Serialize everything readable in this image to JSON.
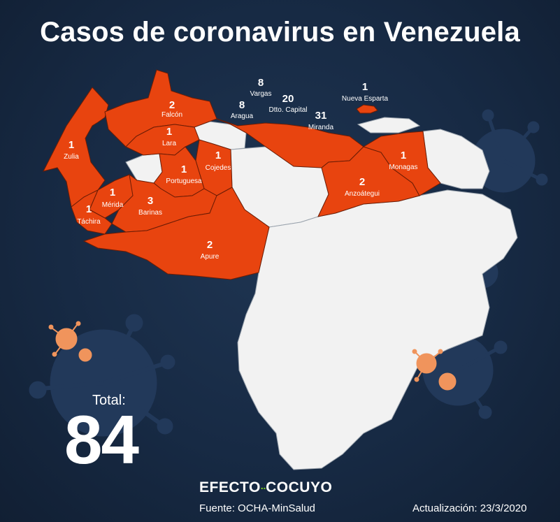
{
  "title": "Casos de coronavirus en Venezuela",
  "total": {
    "label": "Total:",
    "value": "84"
  },
  "brand": {
    "left": "EFECTO",
    "dots": "··",
    "right": "COCUYO"
  },
  "source": "Fuente: OCHA-MinSalud",
  "updated": "Actualización: 23/3/2020",
  "colors": {
    "background": "#172a44",
    "affected": "#e8440f",
    "unaffected": "#f2f2f2",
    "virus_decoration": "#f0945c"
  },
  "states": [
    {
      "name": "Zulia",
      "count": "1"
    },
    {
      "name": "Falcón",
      "count": "2"
    },
    {
      "name": "Lara",
      "count": "1"
    },
    {
      "name": "Cojedes",
      "count": "1"
    },
    {
      "name": "Portuguesa",
      "count": "1"
    },
    {
      "name": "Mérida",
      "count": "1"
    },
    {
      "name": "Barinas",
      "count": "3"
    },
    {
      "name": "Táchira",
      "count": "1"
    },
    {
      "name": "Apure",
      "count": "2"
    },
    {
      "name": "Vargas",
      "count": "8"
    },
    {
      "name": "Aragua",
      "count": "8"
    },
    {
      "name": "Dtto. Capital",
      "count": "20"
    },
    {
      "name": "Miranda",
      "count": "31"
    },
    {
      "name": "Nueva Esparta",
      "count": "1"
    },
    {
      "name": "Monagas",
      "count": "1"
    },
    {
      "name": "Anzoátegui",
      "count": "2"
    }
  ]
}
